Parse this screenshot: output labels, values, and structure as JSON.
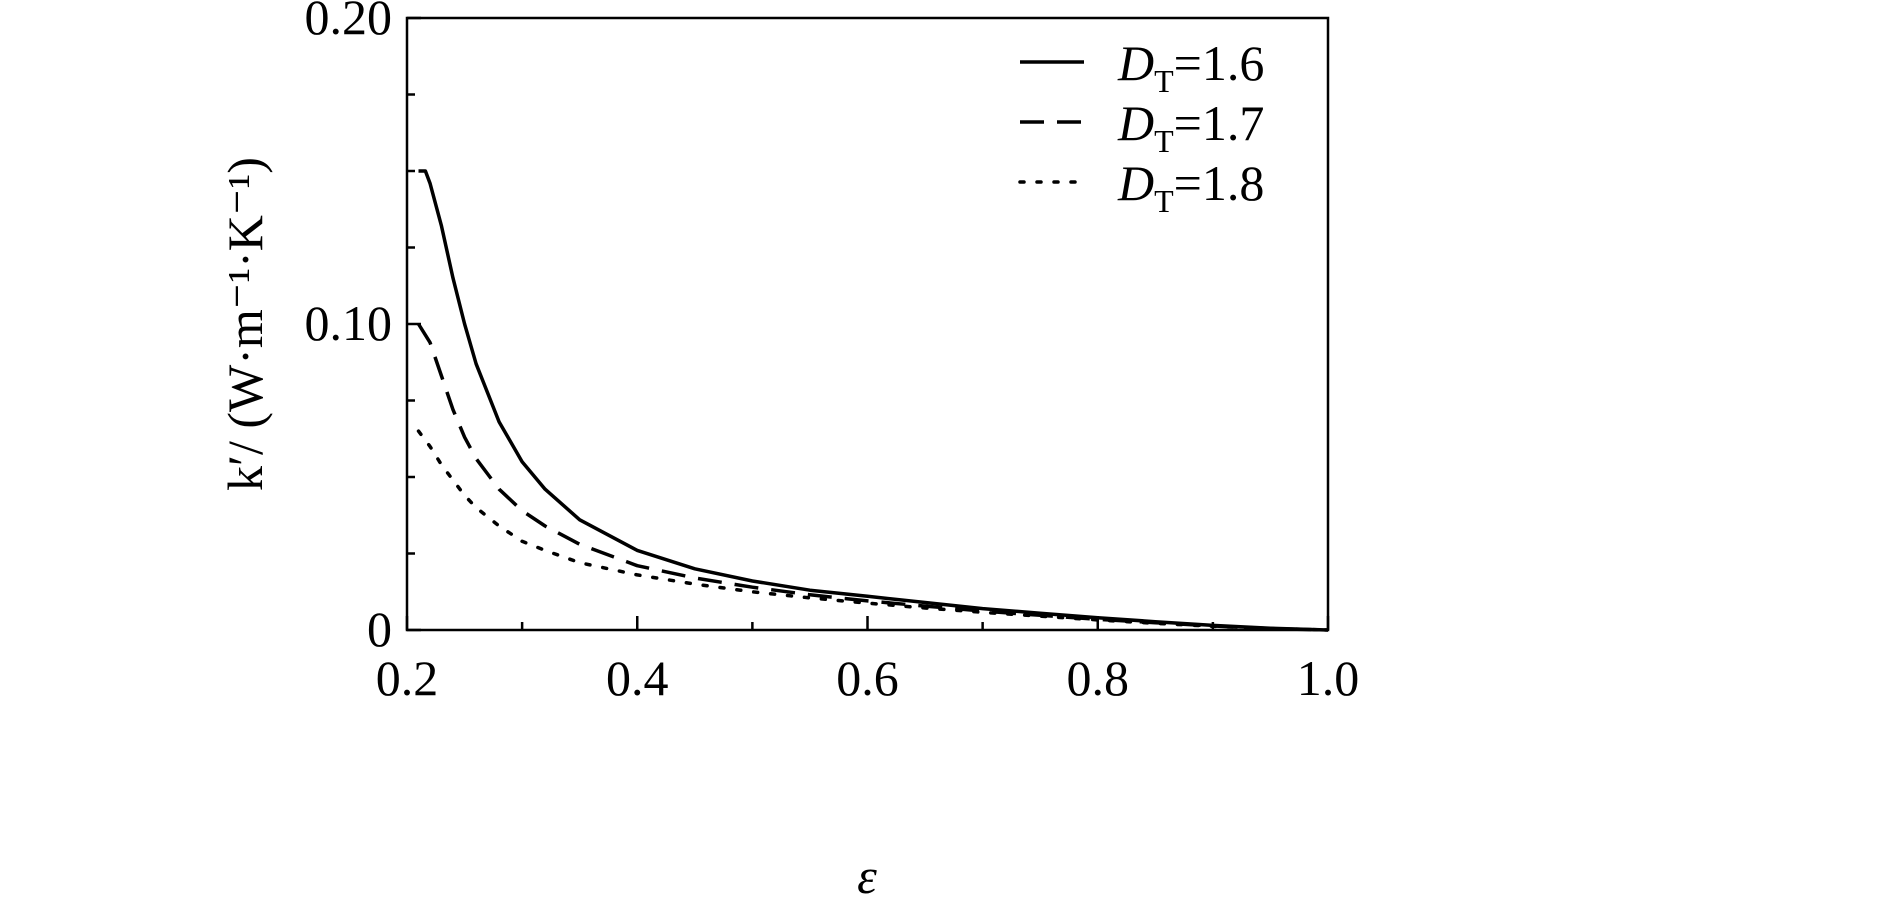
{
  "chart_data": {
    "type": "line",
    "xlabel": "ε",
    "ylabel": "k′/ (W·m⁻¹·K⁻¹)",
    "xlim": [
      0.2,
      1.0
    ],
    "ylim": [
      0,
      0.2
    ],
    "x_ticks": [
      0.2,
      0.4,
      0.6,
      0.8,
      1.0
    ],
    "x_tick_labels": [
      "0.2",
      "0.4",
      "0.6",
      "0.8",
      "1.0"
    ],
    "y_ticks": [
      0,
      0.1,
      0.2
    ],
    "y_tick_labels": [
      "0",
      "0.10",
      "0.20"
    ],
    "grid": false,
    "legend_position": "top-right",
    "legend": {
      "symbol": "D",
      "subscript": "T",
      "entries": [
        "=1.6",
        "=1.7",
        "=1.8"
      ]
    },
    "series": [
      {
        "name": "DT=1.6",
        "style": "solid",
        "points": [
          [
            0.21,
            0.15
          ],
          [
            0.216,
            0.15
          ],
          [
            0.22,
            0.146
          ],
          [
            0.23,
            0.132
          ],
          [
            0.24,
            0.115
          ],
          [
            0.25,
            0.1
          ],
          [
            0.26,
            0.087
          ],
          [
            0.28,
            0.068
          ],
          [
            0.3,
            0.055
          ],
          [
            0.32,
            0.046
          ],
          [
            0.35,
            0.036
          ],
          [
            0.4,
            0.026
          ],
          [
            0.45,
            0.02
          ],
          [
            0.5,
            0.016
          ],
          [
            0.55,
            0.013
          ],
          [
            0.6,
            0.011
          ],
          [
            0.65,
            0.009
          ],
          [
            0.7,
            0.007
          ],
          [
            0.75,
            0.0055
          ],
          [
            0.8,
            0.004
          ],
          [
            0.85,
            0.0027
          ],
          [
            0.9,
            0.0015
          ],
          [
            0.95,
            0.0006
          ],
          [
            1.0,
            0.0
          ]
        ]
      },
      {
        "name": "DT=1.7",
        "style": "dashed",
        "points": [
          [
            0.21,
            0.1
          ],
          [
            0.22,
            0.094
          ],
          [
            0.23,
            0.083
          ],
          [
            0.24,
            0.072
          ],
          [
            0.25,
            0.063
          ],
          [
            0.26,
            0.056
          ],
          [
            0.28,
            0.046
          ],
          [
            0.3,
            0.039
          ],
          [
            0.32,
            0.034
          ],
          [
            0.35,
            0.028
          ],
          [
            0.4,
            0.021
          ],
          [
            0.45,
            0.017
          ],
          [
            0.5,
            0.014
          ],
          [
            0.55,
            0.0115
          ],
          [
            0.6,
            0.0095
          ],
          [
            0.65,
            0.0078
          ],
          [
            0.7,
            0.0062
          ],
          [
            0.75,
            0.0048
          ],
          [
            0.8,
            0.0035
          ],
          [
            0.85,
            0.0024
          ],
          [
            0.9,
            0.0013
          ],
          [
            0.95,
            0.0005
          ],
          [
            1.0,
            0.0
          ]
        ]
      },
      {
        "name": "DT=1.8",
        "style": "dotted",
        "points": [
          [
            0.21,
            0.065
          ],
          [
            0.22,
            0.06
          ],
          [
            0.23,
            0.054
          ],
          [
            0.24,
            0.049
          ],
          [
            0.25,
            0.044
          ],
          [
            0.26,
            0.04
          ],
          [
            0.28,
            0.034
          ],
          [
            0.3,
            0.029
          ],
          [
            0.32,
            0.026
          ],
          [
            0.35,
            0.022
          ],
          [
            0.4,
            0.018
          ],
          [
            0.45,
            0.015
          ],
          [
            0.5,
            0.0125
          ],
          [
            0.55,
            0.0105
          ],
          [
            0.6,
            0.0088
          ],
          [
            0.65,
            0.0072
          ],
          [
            0.7,
            0.0058
          ],
          [
            0.75,
            0.0045
          ],
          [
            0.8,
            0.0033
          ],
          [
            0.85,
            0.0022
          ],
          [
            0.9,
            0.0012
          ],
          [
            0.95,
            0.0005
          ],
          [
            1.0,
            0.0
          ]
        ]
      }
    ]
  }
}
